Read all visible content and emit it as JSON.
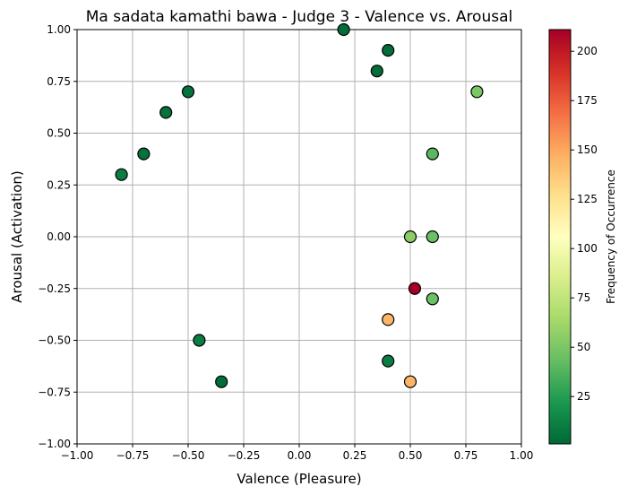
{
  "chart_data": {
    "type": "scatter",
    "title": "Ma sadata kamathi bawa - Judge 3 - Valence vs. Arousal",
    "xlabel": "Valence (Pleasure)",
    "ylabel": "Arousal (Activation)",
    "xlim": [
      -1.0,
      1.0
    ],
    "ylim": [
      -1.0,
      1.0
    ],
    "xticks": [
      "−1.00",
      "−0.75",
      "−0.50",
      "−0.25",
      "0.00",
      "0.25",
      "0.50",
      "0.75",
      "1.00"
    ],
    "yticks": [
      "−1.00",
      "−0.75",
      "−0.50",
      "−0.25",
      "0.00",
      "0.25",
      "0.50",
      "0.75",
      "1.00"
    ],
    "grid": true,
    "colorbar": {
      "label": "Frequency of Occurrence",
      "colormap": "RdYlGn_r",
      "range": [
        1,
        211
      ],
      "ticks": [
        "25",
        "50",
        "75",
        "100",
        "125",
        "150",
        "175",
        "200"
      ],
      "tick_values": [
        25,
        50,
        75,
        100,
        125,
        150,
        175,
        200
      ]
    },
    "points": [
      {
        "x": 0.2,
        "y": 1.0,
        "freq": 3
      },
      {
        "x": 0.4,
        "y": 0.9,
        "freq": 3
      },
      {
        "x": 0.35,
        "y": 0.8,
        "freq": 3
      },
      {
        "x": 0.8,
        "y": 0.7,
        "freq": 50
      },
      {
        "x": -0.5,
        "y": 0.7,
        "freq": 5
      },
      {
        "x": -0.6,
        "y": 0.6,
        "freq": 5
      },
      {
        "x": -0.7,
        "y": 0.4,
        "freq": 5
      },
      {
        "x": -0.8,
        "y": 0.3,
        "freq": 10
      },
      {
        "x": 0.6,
        "y": 0.4,
        "freq": 40
      },
      {
        "x": 0.5,
        "y": 0.0,
        "freq": 55
      },
      {
        "x": 0.6,
        "y": 0.0,
        "freq": 45
      },
      {
        "x": 0.52,
        "y": -0.25,
        "freq": 211
      },
      {
        "x": 0.6,
        "y": -0.3,
        "freq": 45
      },
      {
        "x": 0.4,
        "y": -0.4,
        "freq": 145
      },
      {
        "x": -0.45,
        "y": -0.5,
        "freq": 10
      },
      {
        "x": 0.4,
        "y": -0.6,
        "freq": 10
      },
      {
        "x": -0.35,
        "y": -0.7,
        "freq": 3
      },
      {
        "x": 0.5,
        "y": -0.7,
        "freq": 145
      }
    ]
  }
}
